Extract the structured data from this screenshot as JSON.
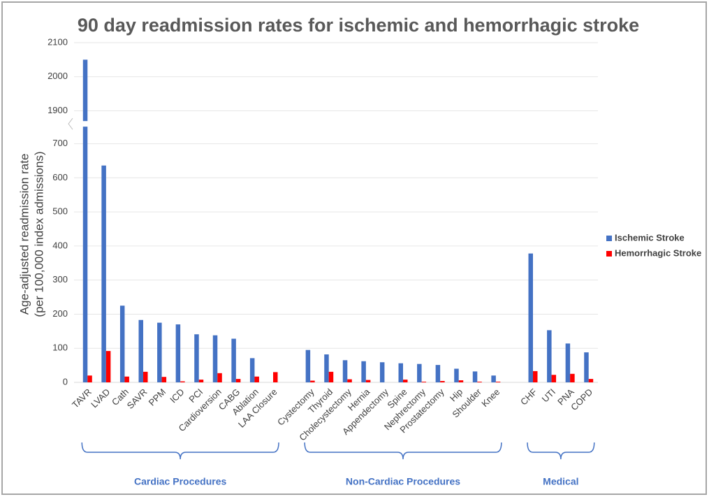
{
  "chart_data": {
    "type": "bar",
    "title": "90 day readmission rates for ischemic and hemorrhagic stroke",
    "y_label": [
      "Age-adjusted readmission rate",
      "(per 100,000 index admissions)"
    ],
    "categories": [
      "TAVR",
      "LVAD",
      "Cath",
      "SAVR",
      "PPM",
      "ICD",
      "PCI",
      "Cardioversion",
      "CABG",
      "Ablation",
      "LAA Closure",
      null,
      "Cystectomy",
      "Thyroid",
      "Cholecystectomy",
      "Hernia",
      "Appendectomy",
      "Spine",
      "Nephrectomy",
      "Prostatectomy",
      "Hip",
      "Shoulder",
      "Knee",
      null,
      "CHF",
      "UTI",
      "PNA",
      "COPD"
    ],
    "series": [
      {
        "name": "Ischemic Stroke",
        "color": "#4472c4",
        "values": [
          2050,
          636,
          225,
          183,
          175,
          170,
          141,
          138,
          128,
          71,
          0,
          null,
          95,
          82,
          65,
          62,
          59,
          56,
          54,
          51,
          40,
          32,
          20,
          null,
          378,
          153,
          114,
          88
        ]
      },
      {
        "name": "Hemorrhagic Stroke",
        "color": "#ff0000",
        "values": [
          20,
          92,
          17,
          31,
          16,
          3,
          8,
          27,
          10,
          17,
          30,
          null,
          5,
          31,
          9,
          7,
          0,
          8,
          2,
          4,
          6,
          2,
          2,
          null,
          33,
          22,
          25,
          10
        ]
      }
    ],
    "group_labels": [
      "Cardiac Procedures",
      "Non-Cardiac Procedures",
      "Medical"
    ],
    "group_color": "#4472c4",
    "ylim": [
      0,
      2100
    ],
    "axis_break": [
      750,
      1870
    ],
    "yticks": [
      0,
      100,
      200,
      300,
      400,
      500,
      600,
      700,
      1900,
      2000,
      2100
    ],
    "grid": true,
    "legend": "right"
  }
}
